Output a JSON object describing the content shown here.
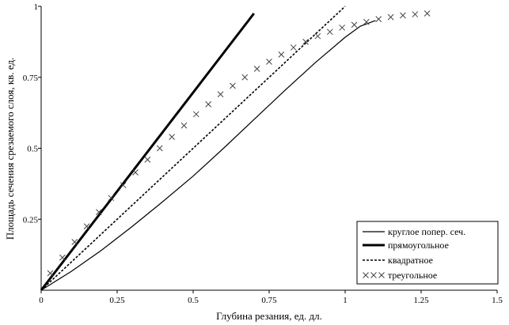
{
  "chart_data": {
    "type": "line",
    "xlabel": "Глубина резания, ед. дл.",
    "ylabel": "Площадь сечения срезаемого слоя, кв. ед.",
    "xlim": [
      0,
      1.5
    ],
    "ylim": [
      0,
      1
    ],
    "x_ticks": [
      "0",
      "0.25",
      "0.5",
      "0.75",
      "1",
      "1.25",
      "1.5"
    ],
    "y_ticks": [
      "0.25",
      "0.5",
      "0.75",
      "1"
    ],
    "grid": false,
    "legend_position": "bottom-right",
    "series": [
      {
        "name": "круглое попер. сеч.",
        "style": "thin-solid",
        "x": [
          0,
          0.1,
          0.2,
          0.3,
          0.4,
          0.5,
          0.6,
          0.7,
          0.8,
          0.9,
          1.0,
          1.05,
          1.1
        ],
        "y": [
          0,
          0.067,
          0.142,
          0.225,
          0.312,
          0.402,
          0.5,
          0.601,
          0.702,
          0.8,
          0.891,
          0.93,
          0.95
        ]
      },
      {
        "name": "прямоугольное",
        "style": "thick-solid",
        "x": [
          0,
          0.7
        ],
        "y": [
          0,
          0.975
        ]
      },
      {
        "name": "квадратное",
        "style": "dotted",
        "x": [
          0,
          0.25,
          0.5,
          0.75,
          1.0
        ],
        "y": [
          0,
          0.25,
          0.5,
          0.75,
          1.0
        ]
      },
      {
        "name": "треугольное",
        "style": "x-markers",
        "x": [
          0.03,
          0.07,
          0.11,
          0.15,
          0.19,
          0.23,
          0.27,
          0.31,
          0.35,
          0.39,
          0.43,
          0.47,
          0.51,
          0.55,
          0.59,
          0.63,
          0.67,
          0.71,
          0.75,
          0.79,
          0.83,
          0.87,
          0.91,
          0.95,
          0.99,
          1.03,
          1.07,
          1.11,
          1.15,
          1.19,
          1.23,
          1.27
        ],
        "y": [
          0.06,
          0.115,
          0.17,
          0.225,
          0.275,
          0.325,
          0.37,
          0.415,
          0.46,
          0.5,
          0.54,
          0.58,
          0.62,
          0.655,
          0.69,
          0.72,
          0.75,
          0.78,
          0.805,
          0.83,
          0.855,
          0.875,
          0.895,
          0.91,
          0.925,
          0.935,
          0.945,
          0.955,
          0.962,
          0.968,
          0.972,
          0.975
        ]
      }
    ]
  }
}
